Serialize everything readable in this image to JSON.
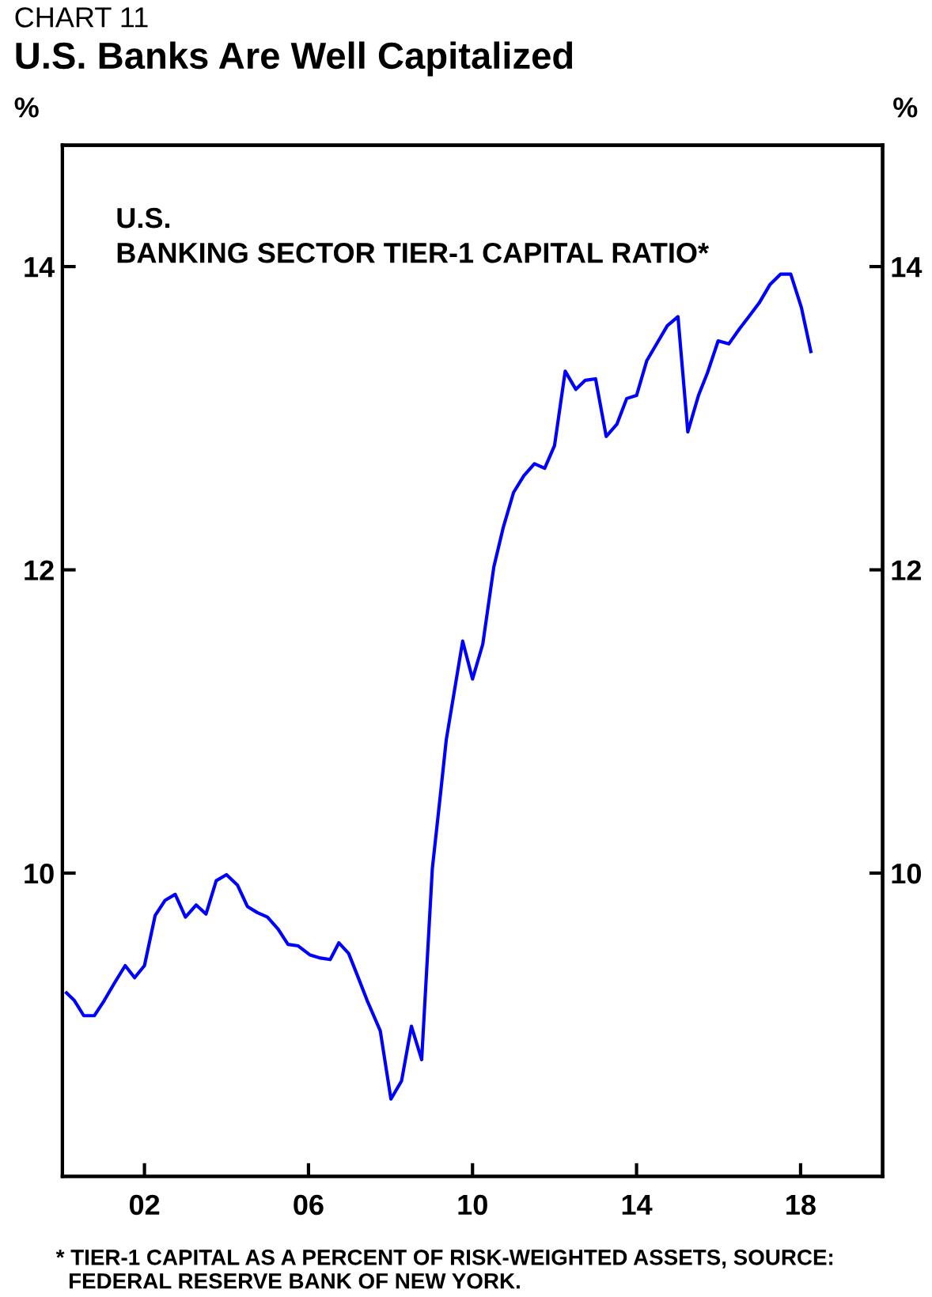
{
  "chart_data": {
    "type": "line",
    "title": "U.S. Banks Are Well Capitalized",
    "subtitle": "U.S.\nBANKING SECTOR TIER-1 CAPITAL RATIO*",
    "ylabel": "%",
    "y2label": "%",
    "annotations": [
      "CHART 11",
      "* TIER-1 CAPITAL AS A PERCENT OF RISK-WEIGHTED ASSETS, SOURCE:\n  FEDERAL RESERVE BANK OF NEW YORK."
    ],
    "series": [
      {
        "color": "#0000ff",
        "x": [
          2000.1,
          2000.29,
          2000.52,
          2000.78,
          2001.02,
          2001.28,
          2001.53,
          2001.76,
          2002.0,
          2002.26,
          2002.5,
          2002.75,
          2003.0,
          2003.26,
          2003.5,
          2003.75,
          2004.0,
          2004.27,
          2004.51,
          2004.75,
          2005.0,
          2005.26,
          2005.5,
          2005.75,
          2006.04,
          2006.29,
          2006.53,
          2006.74,
          2006.98,
          2007.2,
          2007.43,
          2007.75,
          2008.01,
          2008.27,
          2008.51,
          2008.76,
          2009.02,
          2009.23,
          2009.36,
          2009.76,
          2010.0,
          2010.25,
          2010.52,
          2010.75,
          2011.0,
          2011.25,
          2011.51,
          2011.76,
          2012.0,
          2012.26,
          2012.52,
          2012.75,
          2013.0,
          2013.26,
          2013.52,
          2013.76,
          2014.0,
          2014.25,
          2014.51,
          2014.75,
          2015.01,
          2015.25,
          2015.51,
          2015.73,
          2015.99,
          2016.25,
          2016.51,
          2016.74,
          2016.99,
          2017.25,
          2017.51,
          2017.76,
          2018.02,
          2018.25
        ],
        "values": [
          9.21,
          9.16,
          9.06,
          9.06,
          9.16,
          9.28,
          9.39,
          9.31,
          9.39,
          9.72,
          9.82,
          9.86,
          9.71,
          9.79,
          9.73,
          9.95,
          9.99,
          9.92,
          9.78,
          9.74,
          9.71,
          9.63,
          9.53,
          9.52,
          9.46,
          9.44,
          9.43,
          9.54,
          9.47,
          9.32,
          9.16,
          8.96,
          8.51,
          8.63,
          8.99,
          8.77,
          10.03,
          10.55,
          10.88,
          11.53,
          11.28,
          11.51,
          12.02,
          12.28,
          12.51,
          12.62,
          12.7,
          12.67,
          12.82,
          13.31,
          13.19,
          13.25,
          13.26,
          12.88,
          12.96,
          13.13,
          13.15,
          13.38,
          13.5,
          13.61,
          13.67,
          12.91,
          13.15,
          13.3,
          13.51,
          13.49,
          13.59,
          13.67,
          13.76,
          13.88,
          13.95,
          13.95,
          13.73,
          13.44
        ]
      }
    ],
    "xlim": [
      2000,
      2020
    ],
    "xticks": [
      {
        "value": 2002,
        "label": "02"
      },
      {
        "value": 2006,
        "label": "06"
      },
      {
        "value": 2010,
        "label": "10"
      },
      {
        "value": 2014,
        "label": "14"
      },
      {
        "value": 2018,
        "label": "18"
      }
    ],
    "ylim": [
      8.0,
      14.8
    ],
    "yticks": [
      10,
      12,
      14
    ],
    "y2lim": [
      8.0,
      14.8
    ],
    "y2ticks": [
      10,
      12,
      14
    ],
    "grid": false,
    "line_style": "solid",
    "marker": "none"
  }
}
